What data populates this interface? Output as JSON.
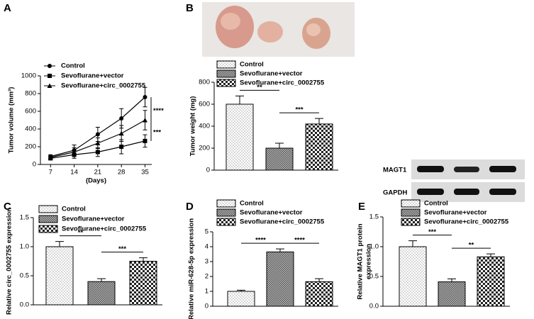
{
  "chart_data": [
    {
      "type": "line",
      "panel": "A",
      "xlabel": "(Days)",
      "ylabel": "Tumor volume (mm³)",
      "x": [
        7,
        14,
        21,
        28,
        35
      ],
      "xlim": [
        4,
        37
      ],
      "xticks": [
        7,
        14,
        21,
        28,
        35
      ],
      "ylim": [
        0,
        1000
      ],
      "yticks": [
        0,
        200,
        400,
        600,
        800,
        1000
      ],
      "color": "#000000",
      "series": [
        {
          "name": "Control",
          "marker": "circle",
          "values": [
            90,
            160,
            340,
            520,
            760
          ],
          "errors": [
            20,
            60,
            80,
            110,
            110
          ]
        },
        {
          "name": "Sevoflurane+vector",
          "marker": "square",
          "values": [
            70,
            110,
            140,
            200,
            265
          ],
          "errors": [
            20,
            40,
            50,
            80,
            70
          ]
        },
        {
          "name": "Sevoflurane+circ_0002755",
          "marker": "triangle",
          "values": [
            80,
            140,
            240,
            350,
            500
          ],
          "errors": [
            20,
            50,
            60,
            90,
            110
          ]
        }
      ],
      "significance": [
        "****",
        "***"
      ]
    },
    {
      "type": "bar",
      "panel": "B",
      "ylabel": "Tumor weight (mg)",
      "ylim": [
        0,
        800
      ],
      "yticks": [
        0,
        200,
        400,
        600,
        800
      ],
      "series": [
        {
          "name": "Control",
          "pattern": "dots",
          "values": [
            600
          ],
          "errors": [
            75
          ]
        },
        {
          "name": "Sevoflurane+vector",
          "pattern": "dense",
          "values": [
            200
          ],
          "errors": [
            45
          ]
        },
        {
          "name": "Sevoflurane+circ_0002755",
          "pattern": "checker",
          "values": [
            420
          ],
          "errors": [
            50
          ]
        }
      ],
      "significance": [
        "**",
        "***"
      ]
    },
    {
      "type": "bar",
      "panel": "C",
      "ylabel": "Relative circ_0002755 expression",
      "ylim": [
        0,
        1.5
      ],
      "yticks": [
        {
          "value": 0,
          "label": "0.0"
        },
        0.5,
        {
          "value": 1,
          "label": "1.0"
        },
        1.5
      ],
      "series": [
        {
          "name": "Control",
          "pattern": "dots",
          "values": [
            1.0
          ],
          "errors": [
            0.09
          ]
        },
        {
          "name": "Sevoflurane+vector",
          "pattern": "dense",
          "values": [
            0.4
          ],
          "errors": [
            0.05
          ]
        },
        {
          "name": "Sevoflurane+circ_0002755",
          "pattern": "checker",
          "values": [
            0.75
          ],
          "errors": [
            0.06
          ]
        }
      ],
      "significance": [
        "**",
        "***"
      ]
    },
    {
      "type": "bar",
      "panel": "D",
      "ylabel": "Relative miR-628-5p expression",
      "ylim": [
        0,
        5
      ],
      "yticks": [
        0,
        1,
        2,
        3,
        4,
        5
      ],
      "series": [
        {
          "name": "Control",
          "pattern": "dots",
          "values": [
            1.0
          ],
          "errors": [
            0.08
          ]
        },
        {
          "name": "Sevoflurane+vector",
          "pattern": "dense",
          "values": [
            3.65
          ],
          "errors": [
            0.2
          ]
        },
        {
          "name": "Sevoflurane+circ_0002755",
          "pattern": "checker",
          "values": [
            1.65
          ],
          "errors": [
            0.2
          ]
        }
      ],
      "significance": [
        "****",
        "****"
      ]
    },
    {
      "type": "bar",
      "panel": "E",
      "ylabel": [
        "Relative MAGT1 protein",
        "expression"
      ],
      "ylim": [
        0,
        1.5
      ],
      "yticks": [
        {
          "value": 0,
          "label": "0.0"
        },
        0.5,
        {
          "value": 1,
          "label": "1.0"
        },
        1.5
      ],
      "blot_labels": [
        "MAGT1",
        "GAPDH"
      ],
      "series": [
        {
          "name": "Control",
          "pattern": "dots",
          "values": [
            1.0
          ],
          "errors": [
            0.1
          ]
        },
        {
          "name": "Sevoflurane+vector",
          "pattern": "dense",
          "values": [
            0.41
          ],
          "errors": [
            0.05
          ]
        },
        {
          "name": "Sevoflurane+circ_0002755",
          "pattern": "checker",
          "values": [
            0.83
          ],
          "errors": [
            0.05
          ]
        }
      ],
      "significance": [
        "***",
        "**"
      ]
    }
  ]
}
